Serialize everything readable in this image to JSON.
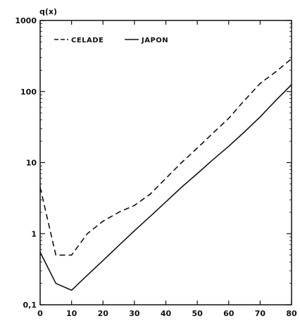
{
  "chart_data": {
    "type": "line",
    "title": "",
    "ylabel": "q(x)",
    "xlabel": "",
    "x_scale": "linear",
    "y_scale": "log",
    "xlim": [
      0,
      80
    ],
    "ylim": [
      0.1,
      1000
    ],
    "x_ticks": [
      "0",
      "10",
      "20",
      "30",
      "40",
      "50",
      "60",
      "70",
      "80"
    ],
    "y_ticks": [
      {
        "value": 1000,
        "label": "1000"
      },
      {
        "value": 100,
        "label": "100"
      },
      {
        "value": 10,
        "label": "10"
      },
      {
        "value": 1,
        "label": "1"
      },
      {
        "value": 0.1,
        "label": "0,1"
      }
    ],
    "grid": false,
    "legend_position": "top-left",
    "series": [
      {
        "name": "CELADE",
        "color": "#111111",
        "dash": "8,5",
        "x": [
          0,
          5,
          10,
          15,
          20,
          25,
          30,
          35,
          40,
          45,
          50,
          55,
          60,
          65,
          70,
          75,
          80
        ],
        "y": [
          4.5,
          0.5,
          0.5,
          1.0,
          1.5,
          2.0,
          2.5,
          3.6,
          6.0,
          10.0,
          16.0,
          26.0,
          42.0,
          75.0,
          130.0,
          190.0,
          290.0
        ]
      },
      {
        "name": "JAPON",
        "color": "#111111",
        "dash": "",
        "x": [
          0,
          5,
          10,
          15,
          20,
          25,
          30,
          35,
          40,
          45,
          50,
          55,
          60,
          65,
          70,
          75,
          80
        ],
        "y": [
          0.55,
          0.2,
          0.16,
          0.26,
          0.42,
          0.68,
          1.1,
          1.75,
          2.8,
          4.5,
          7.0,
          11.0,
          17.0,
          27.0,
          44.0,
          75.0,
          125.0
        ]
      }
    ]
  }
}
